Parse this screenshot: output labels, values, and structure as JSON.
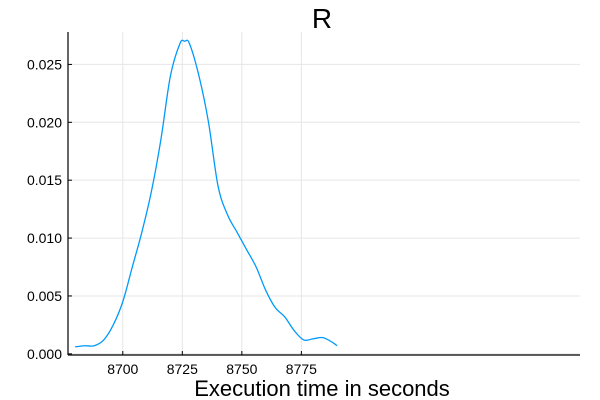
{
  "chart_data": {
    "type": "line",
    "title": "R",
    "xlabel": "Execution time in seconds",
    "ylabel": "",
    "xlim": [
      8677,
      8892
    ],
    "ylim": [
      -0.0001,
      0.0278
    ],
    "x_ticks": [
      8700,
      8725,
      8750,
      8775
    ],
    "y_ticks": [
      0.0,
      0.005,
      0.01,
      0.015,
      0.02,
      0.025
    ],
    "y_tick_labels": [
      "0.000",
      "0.005",
      "0.010",
      "0.015",
      "0.020",
      "0.025"
    ],
    "x_tick_labels": [
      "8700",
      "8725",
      "8750",
      "8775"
    ],
    "grid": true,
    "legend": false,
    "series": [
      {
        "color": "#009AFA",
        "x": [
          8680,
          8684,
          8688,
          8692,
          8696,
          8700,
          8704,
          8708,
          8712,
          8716,
          8720,
          8724,
          8726,
          8728,
          8732,
          8736,
          8740,
          8744,
          8748,
          8752,
          8756,
          8760,
          8764,
          8768,
          8772,
          8776,
          8780,
          8784,
          8788,
          8790
        ],
        "y": [
          0.0006,
          0.0007,
          0.0007,
          0.0012,
          0.0025,
          0.0045,
          0.0075,
          0.0105,
          0.014,
          0.0185,
          0.024,
          0.0268,
          0.027,
          0.0268,
          0.024,
          0.02,
          0.0145,
          0.012,
          0.0105,
          0.009,
          0.0075,
          0.0055,
          0.004,
          0.0032,
          0.002,
          0.0012,
          0.0013,
          0.0014,
          0.001,
          0.0007
        ]
      }
    ]
  }
}
